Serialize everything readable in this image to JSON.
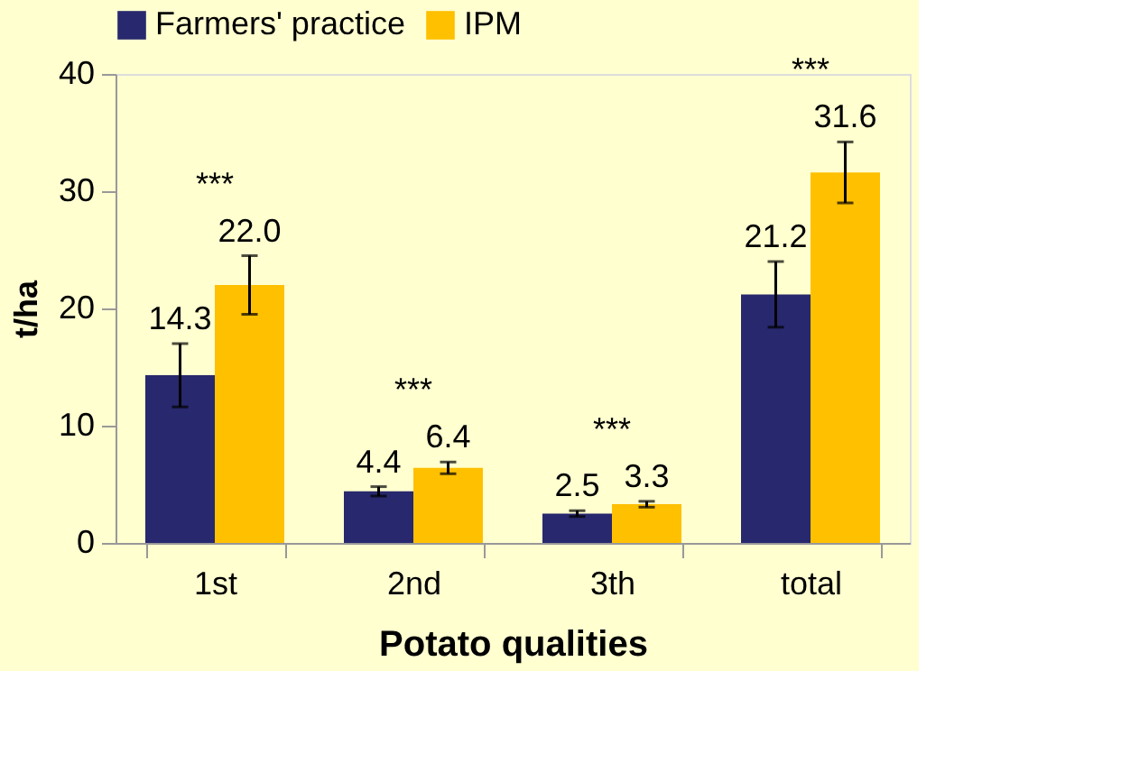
{
  "chart_data": {
    "type": "bar",
    "xlabel": "Potato qualities",
    "ylabel": "t/ha",
    "categories": [
      "1st",
      "2nd",
      "3th",
      "total"
    ],
    "series": [
      {
        "name": "Farmers' practice",
        "color": "#28286e",
        "values": [
          14.3,
          4.4,
          2.5,
          21.2
        ],
        "errors": [
          2.7,
          0.4,
          0.25,
          2.8
        ],
        "value_labels": [
          "14.3",
          "4.4",
          "2.5",
          "21.2"
        ]
      },
      {
        "name": "IPM",
        "color": "#ffc000",
        "values": [
          22.0,
          6.4,
          3.3,
          31.6
        ],
        "errors": [
          2.5,
          0.5,
          0.25,
          2.6
        ],
        "value_labels": [
          "22.0",
          "6.4",
          "3.3",
          "31.6"
        ]
      }
    ],
    "ylim": [
      0,
      40
    ],
    "yticks": [
      0,
      10,
      20,
      30,
      40
    ],
    "grid": false,
    "legend": "top",
    "annotations": [
      "***",
      "***",
      "***",
      "***"
    ]
  }
}
